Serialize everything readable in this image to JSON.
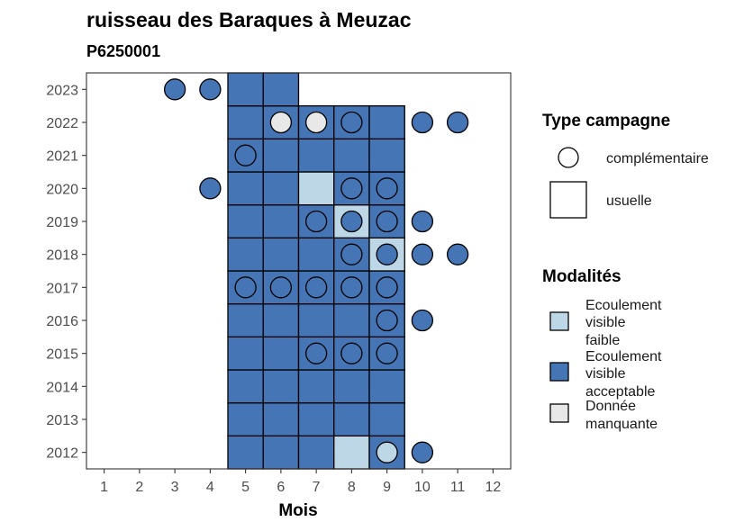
{
  "chart_data": {
    "type": "heatmap",
    "title": "ruisseau des Baraques à Meuzac",
    "subtitle": "P6250001",
    "xlabel": "Mois",
    "ylabel": "",
    "x_ticks": [
      "1",
      "2",
      "3",
      "4",
      "5",
      "6",
      "7",
      "8",
      "9",
      "10",
      "11",
      "12"
    ],
    "y_ticks": [
      "2012",
      "2013",
      "2014",
      "2015",
      "2016",
      "2017",
      "2018",
      "2019",
      "2020",
      "2021",
      "2022",
      "2023"
    ],
    "xlim": [
      0.5,
      12.5
    ],
    "ylim": [
      2011.5,
      2023.5
    ],
    "colors": {
      "Ecoulement visible faible": "#bdd7e7",
      "Ecoulement visible acceptable": "#4575b4",
      "Donnée manquante": "#e8e8e8"
    },
    "usuelle": [
      {
        "year": 2012,
        "month": 5,
        "m": "acceptable"
      },
      {
        "year": 2012,
        "month": 6,
        "m": "acceptable"
      },
      {
        "year": 2012,
        "month": 7,
        "m": "acceptable"
      },
      {
        "year": 2012,
        "month": 8,
        "m": "faible"
      },
      {
        "year": 2012,
        "month": 9,
        "m": "acceptable"
      },
      {
        "year": 2013,
        "month": 5,
        "m": "acceptable"
      },
      {
        "year": 2013,
        "month": 6,
        "m": "acceptable"
      },
      {
        "year": 2013,
        "month": 7,
        "m": "acceptable"
      },
      {
        "year": 2013,
        "month": 8,
        "m": "acceptable"
      },
      {
        "year": 2013,
        "month": 9,
        "m": "acceptable"
      },
      {
        "year": 2014,
        "month": 5,
        "m": "acceptable"
      },
      {
        "year": 2014,
        "month": 6,
        "m": "acceptable"
      },
      {
        "year": 2014,
        "month": 7,
        "m": "acceptable"
      },
      {
        "year": 2014,
        "month": 8,
        "m": "acceptable"
      },
      {
        "year": 2014,
        "month": 9,
        "m": "acceptable"
      },
      {
        "year": 2015,
        "month": 5,
        "m": "acceptable"
      },
      {
        "year": 2015,
        "month": 6,
        "m": "acceptable"
      },
      {
        "year": 2015,
        "month": 7,
        "m": "acceptable"
      },
      {
        "year": 2015,
        "month": 8,
        "m": "acceptable"
      },
      {
        "year": 2015,
        "month": 9,
        "m": "acceptable"
      },
      {
        "year": 2016,
        "month": 5,
        "m": "acceptable"
      },
      {
        "year": 2016,
        "month": 6,
        "m": "acceptable"
      },
      {
        "year": 2016,
        "month": 7,
        "m": "acceptable"
      },
      {
        "year": 2016,
        "month": 8,
        "m": "acceptable"
      },
      {
        "year": 2016,
        "month": 9,
        "m": "acceptable"
      },
      {
        "year": 2017,
        "month": 5,
        "m": "acceptable"
      },
      {
        "year": 2017,
        "month": 6,
        "m": "acceptable"
      },
      {
        "year": 2017,
        "month": 7,
        "m": "acceptable"
      },
      {
        "year": 2017,
        "month": 8,
        "m": "acceptable"
      },
      {
        "year": 2017,
        "month": 9,
        "m": "acceptable"
      },
      {
        "year": 2018,
        "month": 5,
        "m": "acceptable"
      },
      {
        "year": 2018,
        "month": 6,
        "m": "acceptable"
      },
      {
        "year": 2018,
        "month": 7,
        "m": "acceptable"
      },
      {
        "year": 2018,
        "month": 8,
        "m": "acceptable"
      },
      {
        "year": 2018,
        "month": 9,
        "m": "faible"
      },
      {
        "year": 2019,
        "month": 5,
        "m": "acceptable"
      },
      {
        "year": 2019,
        "month": 6,
        "m": "acceptable"
      },
      {
        "year": 2019,
        "month": 7,
        "m": "acceptable"
      },
      {
        "year": 2019,
        "month": 8,
        "m": "faible"
      },
      {
        "year": 2019,
        "month": 9,
        "m": "acceptable"
      },
      {
        "year": 2020,
        "month": 5,
        "m": "acceptable"
      },
      {
        "year": 2020,
        "month": 6,
        "m": "acceptable"
      },
      {
        "year": 2020,
        "month": 7,
        "m": "faible"
      },
      {
        "year": 2020,
        "month": 8,
        "m": "acceptable"
      },
      {
        "year": 2020,
        "month": 9,
        "m": "acceptable"
      },
      {
        "year": 2021,
        "month": 5,
        "m": "acceptable"
      },
      {
        "year": 2021,
        "month": 6,
        "m": "acceptable"
      },
      {
        "year": 2021,
        "month": 7,
        "m": "acceptable"
      },
      {
        "year": 2021,
        "month": 8,
        "m": "acceptable"
      },
      {
        "year": 2021,
        "month": 9,
        "m": "acceptable"
      },
      {
        "year": 2022,
        "month": 5,
        "m": "acceptable"
      },
      {
        "year": 2022,
        "month": 6,
        "m": "acceptable"
      },
      {
        "year": 2022,
        "month": 7,
        "m": "acceptable"
      },
      {
        "year": 2022,
        "month": 8,
        "m": "acceptable"
      },
      {
        "year": 2022,
        "month": 9,
        "m": "acceptable"
      },
      {
        "year": 2023,
        "month": 5,
        "m": "acceptable"
      },
      {
        "year": 2023,
        "month": 6,
        "m": "acceptable"
      }
    ],
    "complementaire": [
      {
        "year": 2012,
        "month": 9,
        "m": "faible"
      },
      {
        "year": 2012,
        "month": 10,
        "m": "acceptable"
      },
      {
        "year": 2015,
        "month": 7,
        "m": "acceptable"
      },
      {
        "year": 2015,
        "month": 8,
        "m": "acceptable"
      },
      {
        "year": 2015,
        "month": 9,
        "m": "acceptable"
      },
      {
        "year": 2016,
        "month": 9,
        "m": "acceptable"
      },
      {
        "year": 2016,
        "month": 10,
        "m": "acceptable"
      },
      {
        "year": 2017,
        "month": 5,
        "m": "acceptable"
      },
      {
        "year": 2017,
        "month": 6,
        "m": "acceptable"
      },
      {
        "year": 2017,
        "month": 7,
        "m": "acceptable"
      },
      {
        "year": 2017,
        "month": 8,
        "m": "acceptable"
      },
      {
        "year": 2017,
        "month": 9,
        "m": "acceptable"
      },
      {
        "year": 2018,
        "month": 8,
        "m": "acceptable"
      },
      {
        "year": 2018,
        "month": 9,
        "m": "acceptable"
      },
      {
        "year": 2018,
        "month": 10,
        "m": "acceptable"
      },
      {
        "year": 2018,
        "month": 11,
        "m": "acceptable"
      },
      {
        "year": 2019,
        "month": 7,
        "m": "acceptable"
      },
      {
        "year": 2019,
        "month": 8,
        "m": "acceptable"
      },
      {
        "year": 2019,
        "month": 9,
        "m": "acceptable"
      },
      {
        "year": 2019,
        "month": 10,
        "m": "acceptable"
      },
      {
        "year": 2020,
        "month": 4,
        "m": "acceptable"
      },
      {
        "year": 2020,
        "month": 8,
        "m": "acceptable"
      },
      {
        "year": 2020,
        "month": 9,
        "m": "acceptable"
      },
      {
        "year": 2021,
        "month": 5,
        "m": "acceptable"
      },
      {
        "year": 2022,
        "month": 6,
        "m": "manquante"
      },
      {
        "year": 2022,
        "month": 7,
        "m": "manquante"
      },
      {
        "year": 2022,
        "month": 8,
        "m": "acceptable"
      },
      {
        "year": 2022,
        "month": 10,
        "m": "acceptable"
      },
      {
        "year": 2022,
        "month": 11,
        "m": "acceptable"
      },
      {
        "year": 2023,
        "month": 3,
        "m": "acceptable"
      },
      {
        "year": 2023,
        "month": 4,
        "m": "acceptable"
      }
    ],
    "legend_type": {
      "title": "Type campagne",
      "items": [
        "complémentaire",
        "usuelle"
      ]
    },
    "legend_mod": {
      "title": "Modalités",
      "items": [
        {
          "key": "faible",
          "lines": [
            "Ecoulement",
            "visible",
            "faible"
          ]
        },
        {
          "key": "acceptable",
          "lines": [
            "Ecoulement",
            "visible",
            "acceptable"
          ]
        },
        {
          "key": "manquante",
          "lines": [
            "Donnée",
            "manquante"
          ]
        }
      ]
    },
    "legend_placement": "right",
    "grid": false
  }
}
